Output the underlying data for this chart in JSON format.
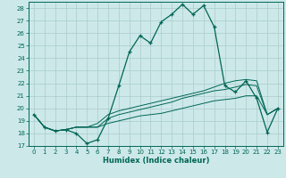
{
  "xlabel": "Humidex (Indice chaleur)",
  "bg_color": "#cce8e8",
  "grid_color": "#aacccc",
  "line_color": "#006655",
  "xlim_min": -0.5,
  "xlim_max": 23.5,
  "ylim_min": 17,
  "ylim_max": 28.5,
  "yticks": [
    17,
    18,
    19,
    20,
    21,
    22,
    23,
    24,
    25,
    26,
    27,
    28
  ],
  "xticks": [
    0,
    1,
    2,
    3,
    4,
    5,
    6,
    7,
    8,
    9,
    10,
    11,
    12,
    13,
    14,
    15,
    16,
    17,
    18,
    19,
    20,
    21,
    22,
    23
  ],
  "main_curve_y": [
    19.5,
    18.5,
    18.2,
    18.3,
    18.0,
    17.2,
    17.5,
    19.2,
    21.8,
    24.5,
    25.8,
    25.2,
    26.9,
    27.5,
    28.3,
    27.5,
    28.2,
    26.5,
    21.8,
    21.3,
    22.2,
    20.8,
    18.1,
    20.0
  ],
  "line2_y": [
    19.5,
    18.5,
    18.2,
    18.3,
    18.5,
    18.5,
    18.5,
    18.8,
    19.0,
    19.2,
    19.4,
    19.5,
    19.6,
    19.8,
    20.0,
    20.2,
    20.4,
    20.6,
    20.7,
    20.8,
    21.0,
    21.0,
    19.5,
    20.0
  ],
  "line3_y": [
    19.5,
    18.5,
    18.2,
    18.3,
    18.5,
    18.5,
    18.5,
    19.2,
    19.5,
    19.7,
    19.9,
    20.1,
    20.3,
    20.5,
    20.8,
    21.0,
    21.2,
    21.4,
    21.5,
    21.7,
    21.9,
    21.8,
    19.5,
    20.0
  ],
  "line4_y": [
    19.5,
    18.5,
    18.2,
    18.3,
    18.5,
    18.5,
    18.8,
    19.5,
    19.8,
    20.0,
    20.2,
    20.4,
    20.6,
    20.8,
    21.0,
    21.2,
    21.4,
    21.7,
    22.0,
    22.2,
    22.3,
    22.2,
    19.5,
    20.0
  ],
  "xlabel_fontsize": 6.0,
  "tick_fontsize": 5.0
}
